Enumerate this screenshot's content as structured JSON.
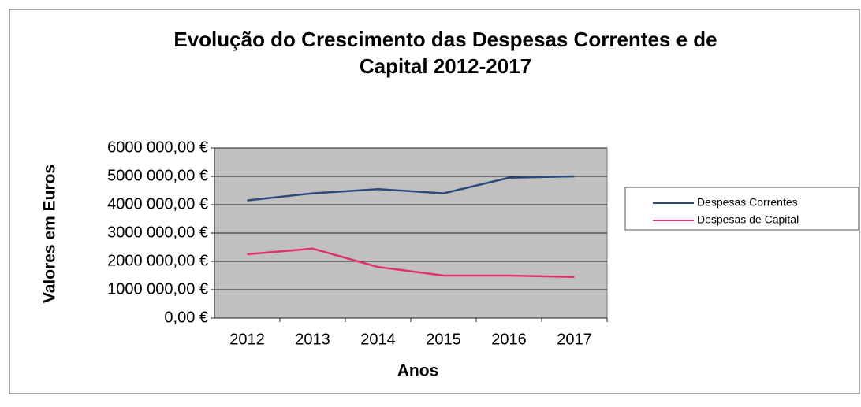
{
  "chart_data": {
    "type": "line",
    "title": "Evolução do Crescimento das Despesas Correntes e de Capital 2012-2017",
    "title_lines": [
      "Evolução do Crescimento das Despesas Correntes e de",
      "Capital 2012-2017"
    ],
    "x_label": "Anos",
    "y_label": "Valores em Euros",
    "categories": [
      "2012",
      "2013",
      "2014",
      "2015",
      "2016",
      "2017"
    ],
    "series": [
      {
        "name": "Despesas Correntes",
        "color": "#2b4a78",
        "values": [
          4150000,
          4400000,
          4550000,
          4400000,
          4950000,
          5000000
        ]
      },
      {
        "name": "Despesas de Capital",
        "color": "#e0306e",
        "values": [
          2250000,
          2450000,
          1800000,
          1500000,
          1500000,
          1450000
        ]
      }
    ],
    "ylim": [
      0,
      6000000
    ],
    "yticks": [
      {
        "value": 0,
        "label": "0,00 €"
      },
      {
        "value": 1000000,
        "label": "1000 000,00 €"
      },
      {
        "value": 2000000,
        "label": "2000 000,00 €"
      },
      {
        "value": 3000000,
        "label": "3000 000,00 €"
      },
      {
        "value": 4000000,
        "label": "4000 000,00 €"
      },
      {
        "value": 5000000,
        "label": "5000 000,00 €"
      },
      {
        "value": 6000000,
        "label": "6000 000,00 €"
      }
    ],
    "grid": true,
    "legend": "right"
  }
}
